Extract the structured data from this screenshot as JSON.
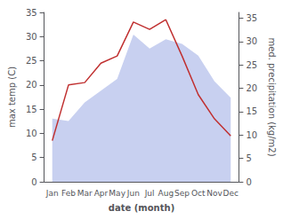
{
  "chart_data": {
    "type": "line",
    "xlabel": "date (month)",
    "ylabel": "max temp (C)",
    "y2label": "med. precipitation (kg/m2)",
    "categories": [
      "Jan",
      "Feb",
      "Mar",
      "Apr",
      "May",
      "Jun",
      "Jul",
      "Aug",
      "Sep",
      "Oct",
      "Nov",
      "Dec"
    ],
    "series": [
      {
        "type": "area",
        "color": "#c8d0f0",
        "axis": "y2",
        "values": [
          13.5,
          13.0,
          17.0,
          19.5,
          22.0,
          31.5,
          28.5,
          30.5,
          29.5,
          27.0,
          21.5,
          18.0
        ]
      },
      {
        "type": "line",
        "color": "#c03030",
        "values": [
          8.5,
          20.0,
          20.5,
          24.5,
          26.0,
          33.0,
          31.5,
          33.5,
          26.0,
          18.0,
          13.0,
          9.5
        ]
      }
    ],
    "ylim": [
      0,
      35
    ],
    "yticks": [
      0,
      5,
      10,
      15,
      20,
      25,
      30,
      35
    ],
    "y2lim": [
      0,
      36.25
    ],
    "y2ticks": [
      0,
      5,
      10,
      15,
      20,
      25,
      30,
      35
    ],
    "grid": false
  }
}
